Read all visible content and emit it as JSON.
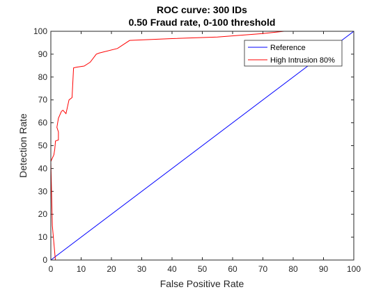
{
  "chart_data": {
    "type": "line",
    "title": [
      "ROC curve: 300 IDs",
      "0.50 Fraud rate, 0-100 threshold"
    ],
    "xlabel": "False Positive Rate",
    "ylabel": "Detection Rate",
    "xlim": [
      0,
      100
    ],
    "ylim": [
      0,
      100
    ],
    "xticks": [
      0,
      10,
      20,
      30,
      40,
      50,
      60,
      70,
      80,
      90,
      100
    ],
    "yticks": [
      0,
      10,
      20,
      30,
      40,
      50,
      60,
      70,
      80,
      90,
      100
    ],
    "grid": false,
    "legend_position": "top-right",
    "series": [
      {
        "name": "Reference",
        "color": "#0000ff",
        "x": [
          0,
          100
        ],
        "y": [
          0,
          100
        ]
      },
      {
        "name": "High Intrusion 80%",
        "color": "#ff0000",
        "x": [
          1.5,
          0.5,
          0,
          0.3,
          1,
          1.3,
          1.5,
          1.5,
          2.5,
          2.5,
          2,
          2.5,
          3.5,
          4,
          5,
          5.5,
          6,
          7,
          7.5,
          8.5,
          11,
          13,
          15,
          16,
          22,
          26,
          40,
          55,
          70,
          77,
          100
        ],
        "y": [
          0,
          15,
          43,
          44,
          46,
          48.5,
          51.5,
          52,
          52.5,
          56,
          58,
          62,
          65,
          65.5,
          64,
          67,
          70,
          71,
          84,
          84.3,
          84.8,
          86.5,
          90,
          90.5,
          92.5,
          96,
          96.8,
          97.5,
          99,
          100,
          100
        ]
      }
    ]
  }
}
